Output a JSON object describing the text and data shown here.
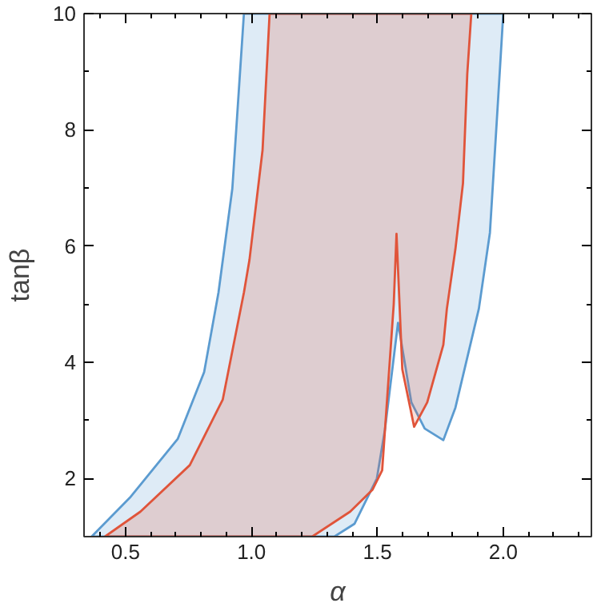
{
  "chart_data": {
    "type": "area",
    "xlabel": "α",
    "ylabel": "tanβ",
    "xlim": [
      0.335,
      2.35
    ],
    "ylim": [
      1,
      10
    ],
    "xticks": [
      {
        "value": 0.4,
        "label": null
      },
      0.5,
      {
        "value": 0.6,
        "label": null
      },
      {
        "value": 0.7,
        "label": null
      },
      {
        "value": 0.8,
        "label": null
      },
      {
        "value": 0.9,
        "label": null
      },
      {
        "value": 1.0,
        "label": "1.0"
      },
      {
        "value": 1.1,
        "label": null
      },
      {
        "value": 1.2,
        "label": null
      },
      {
        "value": 1.3,
        "label": null
      },
      {
        "value": 1.4,
        "label": null
      },
      1.5,
      {
        "value": 1.6,
        "label": null
      },
      {
        "value": 1.7,
        "label": null
      },
      {
        "value": 1.8,
        "label": null
      },
      {
        "value": 1.9,
        "label": null
      },
      {
        "value": 2.0,
        "label": "2.0"
      },
      {
        "value": 2.1,
        "label": null
      },
      {
        "value": 2.2,
        "label": null
      },
      {
        "value": 2.3,
        "label": null
      }
    ],
    "yticks": [
      2,
      {
        "value": 3,
        "label": null
      },
      4,
      {
        "value": 5,
        "label": null
      },
      6,
      {
        "value": 7,
        "label": null
      },
      8,
      {
        "value": 9,
        "label": null
      },
      10
    ],
    "grid": false,
    "series": [
      {
        "color": "#5b9bd0",
        "x": [
          0.365,
          0.517,
          0.707,
          0.812,
          0.869,
          0.924,
          0.97,
          2.0,
          1.979,
          1.947,
          1.903,
          1.81,
          1.762,
          1.688,
          1.635,
          1.582,
          1.53,
          1.498,
          1.409,
          1.329
        ],
        "values": [
          1.0,
          1.67,
          2.68,
          3.83,
          5.2,
          6.99,
          10,
          10,
          8.49,
          6.23,
          4.92,
          3.22,
          2.66,
          2.86,
          3.31,
          4.68,
          2.84,
          2.0,
          1.22,
          1.0
        ]
      },
      {
        "color": "#e0543a",
        "x": [
          0.418,
          0.559,
          0.755,
          0.886,
          0.97,
          0.992,
          1.044,
          1.072,
          1.873,
          1.857,
          1.84,
          1.81,
          1.776,
          1.762,
          1.698,
          1.646,
          1.599,
          1.576,
          1.565,
          1.519,
          1.481,
          1.392,
          1.241
        ],
        "values": [
          1.0,
          1.43,
          2.23,
          3.36,
          5.2,
          5.76,
          7.65,
          10,
          10,
          8.96,
          7.08,
          5.95,
          4.92,
          4.3,
          3.31,
          2.89,
          3.88,
          6.21,
          5.0,
          2.14,
          1.81,
          1.43,
          1.0
        ]
      }
    ]
  }
}
